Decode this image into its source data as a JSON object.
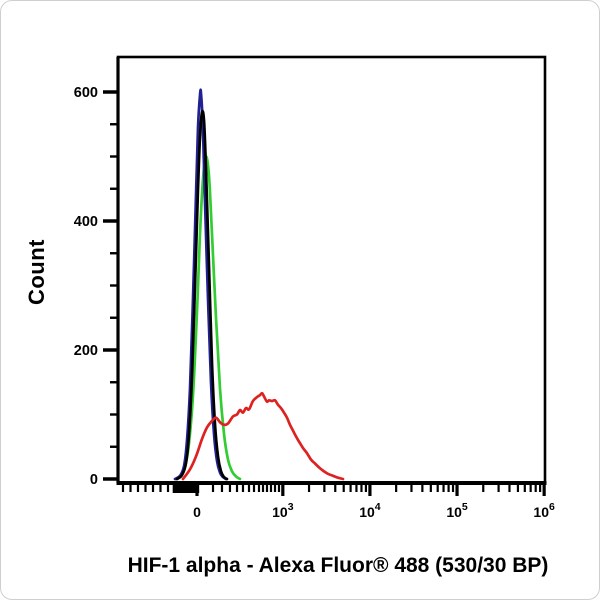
{
  "figure": {
    "title": "HIF-1 alpha - Alexa Fluor® 488 (530/30 BP)",
    "y_axis_label": "Count"
  },
  "chart_data": {
    "type": "line",
    "subtype": "flow-cytometry-histogram-overlay",
    "title": "HIF-1 alpha - Alexa Fluor® 488 (530/30 BP)",
    "xlabel": "HIF-1 alpha - Alexa Fluor® 488 (530/30 BP)",
    "ylabel": "Count",
    "x_scale": "biexponential",
    "grid": false,
    "legend": "none",
    "ylim": [
      0,
      654
    ],
    "y_ticks": {
      "major": [
        0,
        200,
        400,
        600
      ],
      "minor_step": 50
    },
    "x_ticks": {
      "major": [
        {
          "label": "0",
          "frac": 0.185
        },
        {
          "base": "10",
          "exp": "3",
          "frac": 0.386
        },
        {
          "base": "10",
          "exp": "4",
          "frac": 0.59
        },
        {
          "base": "10",
          "exp": "5",
          "frac": 0.794
        },
        {
          "base": "10",
          "exp": "6",
          "frac": 0.998
        }
      ],
      "minor_fracs": [
        0.0117,
        0.0293,
        0.0468,
        0.0644,
        0.082,
        0.0995,
        0.1171,
        0.2225,
        0.2435,
        0.2622,
        0.2787,
        0.2927,
        0.3068,
        0.3185,
        0.3302,
        0.3396,
        0.3489,
        0.3583,
        0.3677,
        0.377,
        0.4474,
        0.4833,
        0.5088,
        0.5286,
        0.5447,
        0.5584,
        0.5702,
        0.5806,
        0.6514,
        0.6873,
        0.7128,
        0.7326,
        0.7487,
        0.7624,
        0.7742,
        0.7846,
        0.8554,
        0.8913,
        0.9168,
        0.9366,
        0.9527,
        0.9664,
        0.9782,
        0.9886
      ],
      "zero_cluster": {
        "start_frac": 0.131,
        "end_frac": 0.19
      }
    },
    "series": [
      {
        "name": "green-control-histogram",
        "color": "#33cc33",
        "peak_count": 500,
        "points": [
          [
            0.1358,
            0
          ],
          [
            0.1475,
            5
          ],
          [
            0.1569,
            18
          ],
          [
            0.1663,
            55
          ],
          [
            0.1757,
            130
          ],
          [
            0.185,
            260
          ],
          [
            0.192,
            380
          ],
          [
            0.1991,
            465
          ],
          [
            0.2061,
            500
          ],
          [
            0.2131,
            470
          ],
          [
            0.2201,
            380
          ],
          [
            0.2295,
            250
          ],
          [
            0.2389,
            140
          ],
          [
            0.2482,
            70
          ],
          [
            0.2576,
            30
          ],
          [
            0.267,
            12
          ],
          [
            0.2763,
            4
          ],
          [
            0.2857,
            0
          ]
        ]
      },
      {
        "name": "navy-control-histogram",
        "color": "#212192",
        "peak_count": 598,
        "points": [
          [
            0.1335,
            0
          ],
          [
            0.1452,
            5
          ],
          [
            0.1546,
            20
          ],
          [
            0.1616,
            60
          ],
          [
            0.1686,
            140
          ],
          [
            0.1757,
            280
          ],
          [
            0.1827,
            440
          ],
          [
            0.1874,
            545
          ],
          [
            0.192,
            595
          ],
          [
            0.1944,
            598
          ],
          [
            0.1991,
            540
          ],
          [
            0.2037,
            430
          ],
          [
            0.2108,
            280
          ],
          [
            0.2178,
            150
          ],
          [
            0.2248,
            70
          ],
          [
            0.2319,
            28
          ],
          [
            0.2389,
            10
          ],
          [
            0.2459,
            3
          ],
          [
            0.2529,
            0
          ]
        ]
      },
      {
        "name": "black-control-histogram",
        "color": "#000000",
        "peak_count": 570,
        "points": [
          [
            0.1382,
            0
          ],
          [
            0.1499,
            6
          ],
          [
            0.1593,
            25
          ],
          [
            0.1663,
            70
          ],
          [
            0.1733,
            160
          ],
          [
            0.1803,
            300
          ],
          [
            0.1874,
            450
          ],
          [
            0.192,
            530
          ],
          [
            0.1967,
            568
          ],
          [
            0.2014,
            556
          ],
          [
            0.2061,
            480
          ],
          [
            0.2131,
            330
          ],
          [
            0.2201,
            180
          ],
          [
            0.2271,
            85
          ],
          [
            0.2341,
            35
          ],
          [
            0.2412,
            12
          ],
          [
            0.2482,
            3
          ],
          [
            0.2553,
            0
          ]
        ]
      },
      {
        "name": "red-hif1-alpha-histogram",
        "color": "#dd2222",
        "peak_count": 133,
        "points": [
          [
            0.1522,
            0
          ],
          [
            0.1686,
            15
          ],
          [
            0.1827,
            35
          ],
          [
            0.1967,
            62
          ],
          [
            0.2084,
            80
          ],
          [
            0.2201,
            90
          ],
          [
            0.2295,
            95
          ],
          [
            0.2389,
            88
          ],
          [
            0.2482,
            84
          ],
          [
            0.2576,
            86
          ],
          [
            0.2693,
            97
          ],
          [
            0.2787,
            100
          ],
          [
            0.2857,
            107
          ],
          [
            0.2927,
            103
          ],
          [
            0.2997,
            110
          ],
          [
            0.3068,
            108
          ],
          [
            0.3161,
            121
          ],
          [
            0.3255,
            127
          ],
          [
            0.3326,
            130
          ],
          [
            0.3372,
            133
          ],
          [
            0.3419,
            128
          ],
          [
            0.3489,
            120
          ],
          [
            0.3536,
            122
          ],
          [
            0.3606,
            121
          ],
          [
            0.3677,
            122
          ],
          [
            0.3747,
            115
          ],
          [
            0.3817,
            110
          ],
          [
            0.3888,
            103
          ],
          [
            0.3958,
            95
          ],
          [
            0.4028,
            84
          ],
          [
            0.4098,
            75
          ],
          [
            0.4169,
            66
          ],
          [
            0.4239,
            58
          ],
          [
            0.4333,
            48
          ],
          [
            0.4426,
            40
          ],
          [
            0.452,
            30
          ],
          [
            0.4614,
            24
          ],
          [
            0.4707,
            18
          ],
          [
            0.4801,
            13
          ],
          [
            0.4918,
            8
          ],
          [
            0.5035,
            5
          ],
          [
            0.5152,
            2
          ],
          [
            0.5269,
            0
          ]
        ]
      }
    ]
  }
}
